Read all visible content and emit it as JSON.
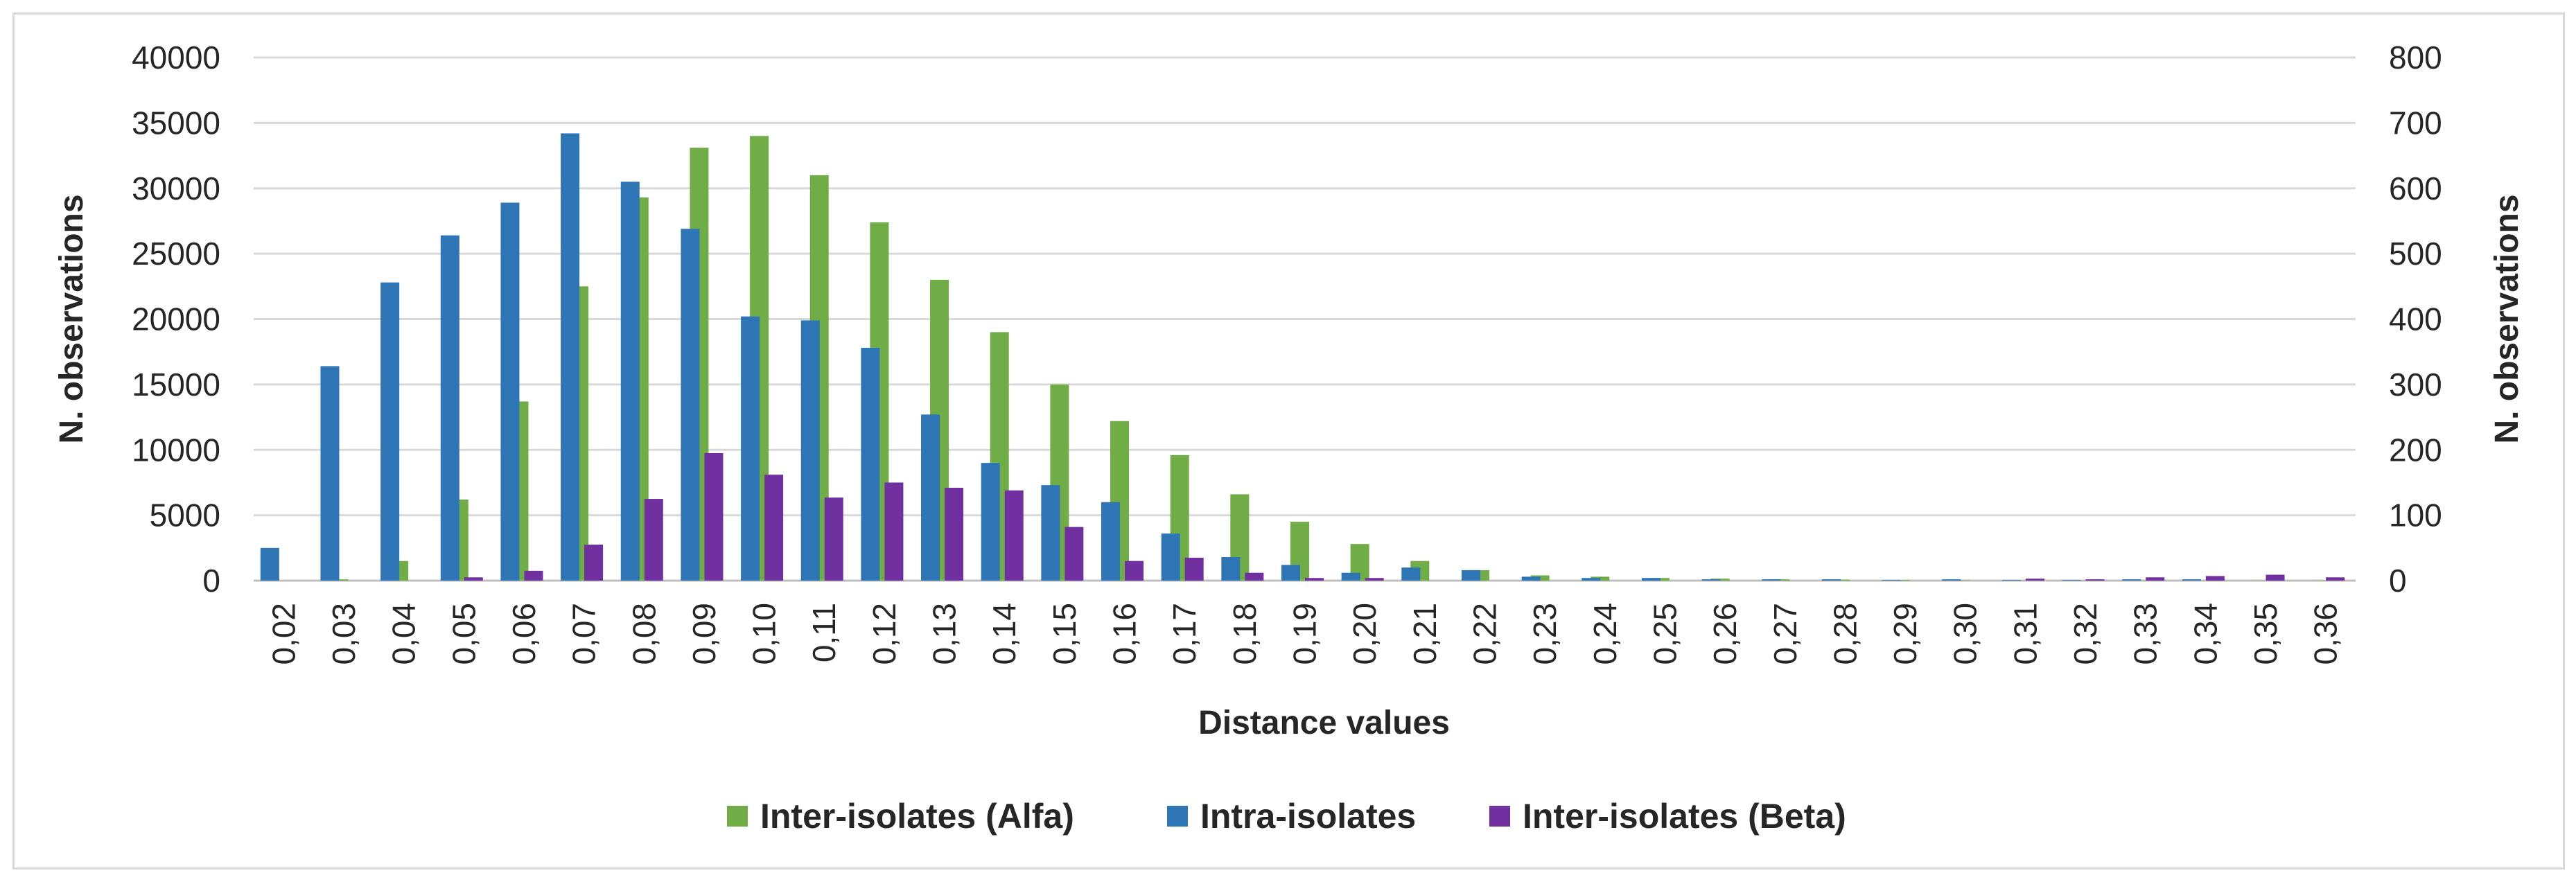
{
  "chart_data": {
    "type": "bar",
    "title": "",
    "xlabel": "Distance values",
    "ylabel_left": "N. observations",
    "ylabel_right": "N. observations",
    "ylim_left": [
      0,
      40000
    ],
    "ylim_right": [
      0,
      800
    ],
    "yticks_left": [
      "0",
      "5000",
      "10000",
      "15000",
      "20000",
      "25000",
      "30000",
      "35000",
      "40000"
    ],
    "yticks_right": [
      "0",
      "100",
      "200",
      "300",
      "400",
      "500",
      "600",
      "700",
      "800"
    ],
    "grid": true,
    "legend_position": "bottom",
    "categories": [
      "0,02",
      "0,03",
      "0,04",
      "0,05",
      "0,06",
      "0,07",
      "0,08",
      "0,09",
      "0,10",
      "0,11",
      "0,12",
      "0,13",
      "0,14",
      "0,15",
      "0,16",
      "0,17",
      "0,18",
      "0,19",
      "0,20",
      "0,21",
      "0,22",
      "0,23",
      "0,24",
      "0,25",
      "0,26",
      "0,27",
      "0,28",
      "0,29",
      "0,30",
      "0,31",
      "0,32",
      "0,33",
      "0,34",
      "0,35",
      "0,36"
    ],
    "series": [
      {
        "name": "Inter-isolates (Alfa)",
        "color": "#70ad47",
        "axis": "left",
        "values": [
          0,
          100,
          1500,
          6200,
          13700,
          22500,
          29300,
          33100,
          34000,
          31000,
          27400,
          23000,
          19000,
          15000,
          12200,
          9600,
          6600,
          4500,
          2800,
          1500,
          800,
          400,
          300,
          200,
          150,
          100,
          80,
          50,
          30,
          20,
          10,
          10,
          10,
          10,
          10
        ]
      },
      {
        "name": "Intra-isolates",
        "color": "#2e75b6",
        "axis": "left",
        "values": [
          2500,
          16400,
          22800,
          26400,
          28900,
          34200,
          30500,
          26900,
          20200,
          19900,
          17800,
          12700,
          9000,
          7300,
          6000,
          3600,
          1800,
          1200,
          600,
          1000,
          800,
          300,
          200,
          200,
          100,
          100,
          100,
          50,
          100,
          50,
          50,
          100,
          100,
          0,
          0
        ]
      },
      {
        "name": "Inter-isolates (Beta)",
        "color": "#7030a0",
        "axis": "right",
        "values": [
          0,
          0,
          0,
          5,
          15,
          55,
          125,
          195,
          162,
          127,
          150,
          142,
          138,
          82,
          30,
          35,
          12,
          4,
          4,
          0,
          0,
          0,
          0,
          0,
          0,
          0,
          0,
          0,
          0,
          3,
          2,
          5,
          7,
          9,
          5
        ]
      }
    ]
  }
}
